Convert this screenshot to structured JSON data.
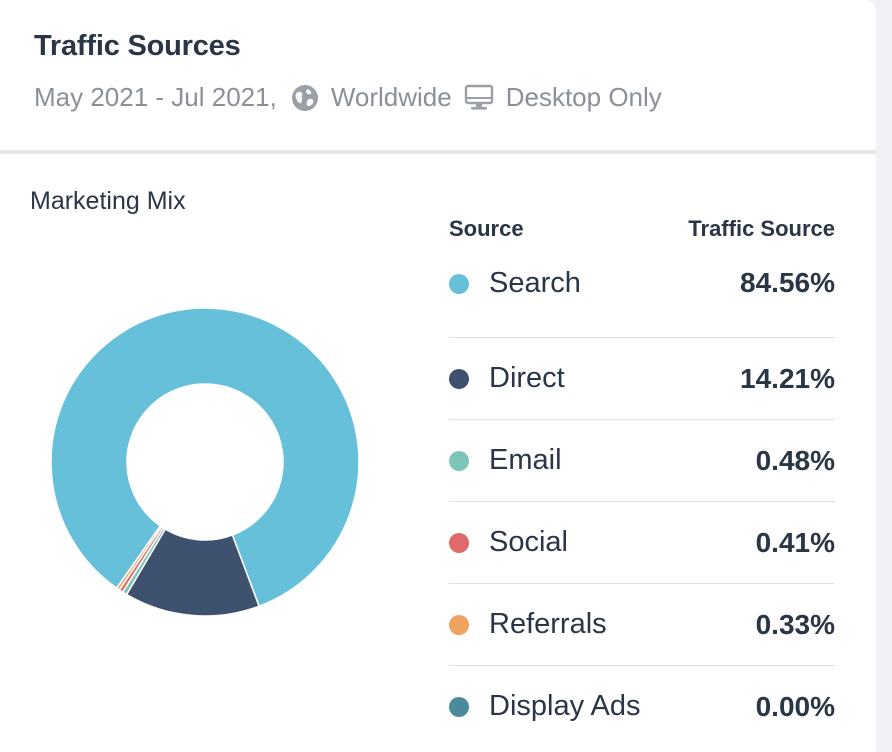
{
  "header": {
    "title": "Traffic Sources",
    "date_range": "May 2021 - Jul 2021,",
    "region": "Worldwide",
    "device": "Desktop Only",
    "icons": [
      "globe-icon",
      "monitor-icon"
    ]
  },
  "section": {
    "label": "Marketing Mix"
  },
  "table": {
    "col_source": "Source",
    "col_value": "Traffic Source",
    "rows": [
      {
        "name": "Search",
        "value": "84.56%",
        "color": "#66c0d9"
      },
      {
        "name": "Direct",
        "value": "14.21%",
        "color": "#3e526f"
      },
      {
        "name": "Email",
        "value": "0.48%",
        "color": "#7cc5b8"
      },
      {
        "name": "Social",
        "value": "0.41%",
        "color": "#e06a69"
      },
      {
        "name": "Referrals",
        "value": "0.33%",
        "color": "#f0a35e"
      },
      {
        "name": "Display Ads",
        "value": "0.00%",
        "color": "#4a8a9a"
      }
    ]
  },
  "chart_data": {
    "type": "pie",
    "title": "Marketing Mix",
    "categories": [
      "Search",
      "Direct",
      "Email",
      "Social",
      "Referrals",
      "Display Ads"
    ],
    "values": [
      84.56,
      14.21,
      0.48,
      0.41,
      0.33,
      0.0
    ],
    "colors": [
      "#66c0d9",
      "#3e526f",
      "#7cc5b8",
      "#e06a69",
      "#f0a35e",
      "#4a8a9a"
    ],
    "donut": true
  }
}
